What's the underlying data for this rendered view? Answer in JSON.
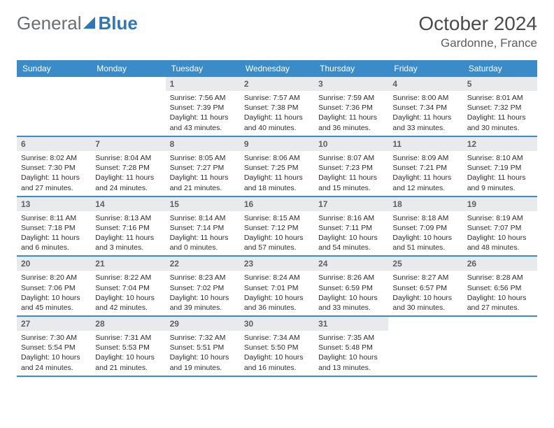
{
  "brand": {
    "part1": "General",
    "part2": "Blue"
  },
  "title": {
    "month": "October 2024",
    "location": "Gardonne, France"
  },
  "colors": {
    "header_bg": "#3b8bc9",
    "header_text": "#ffffff",
    "daynum_bg": "#e8eaec",
    "daynum_text": "#5e6064",
    "rule": "#3b8bc9",
    "logo_gray": "#6b6e71",
    "logo_blue": "#2f77b6"
  },
  "weekdays": [
    "Sunday",
    "Monday",
    "Tuesday",
    "Wednesday",
    "Thursday",
    "Friday",
    "Saturday"
  ],
  "days": [
    {
      "n": "",
      "empty": true
    },
    {
      "n": "",
      "empty": true
    },
    {
      "n": "1",
      "sr": "7:56 AM",
      "ss": "7:39 PM",
      "dl": "11 hours and 43 minutes."
    },
    {
      "n": "2",
      "sr": "7:57 AM",
      "ss": "7:38 PM",
      "dl": "11 hours and 40 minutes."
    },
    {
      "n": "3",
      "sr": "7:59 AM",
      "ss": "7:36 PM",
      "dl": "11 hours and 36 minutes."
    },
    {
      "n": "4",
      "sr": "8:00 AM",
      "ss": "7:34 PM",
      "dl": "11 hours and 33 minutes."
    },
    {
      "n": "5",
      "sr": "8:01 AM",
      "ss": "7:32 PM",
      "dl": "11 hours and 30 minutes."
    },
    {
      "n": "6",
      "sr": "8:02 AM",
      "ss": "7:30 PM",
      "dl": "11 hours and 27 minutes."
    },
    {
      "n": "7",
      "sr": "8:04 AM",
      "ss": "7:28 PM",
      "dl": "11 hours and 24 minutes."
    },
    {
      "n": "8",
      "sr": "8:05 AM",
      "ss": "7:27 PM",
      "dl": "11 hours and 21 minutes."
    },
    {
      "n": "9",
      "sr": "8:06 AM",
      "ss": "7:25 PM",
      "dl": "11 hours and 18 minutes."
    },
    {
      "n": "10",
      "sr": "8:07 AM",
      "ss": "7:23 PM",
      "dl": "11 hours and 15 minutes."
    },
    {
      "n": "11",
      "sr": "8:09 AM",
      "ss": "7:21 PM",
      "dl": "11 hours and 12 minutes."
    },
    {
      "n": "12",
      "sr": "8:10 AM",
      "ss": "7:19 PM",
      "dl": "11 hours and 9 minutes."
    },
    {
      "n": "13",
      "sr": "8:11 AM",
      "ss": "7:18 PM",
      "dl": "11 hours and 6 minutes."
    },
    {
      "n": "14",
      "sr": "8:13 AM",
      "ss": "7:16 PM",
      "dl": "11 hours and 3 minutes."
    },
    {
      "n": "15",
      "sr": "8:14 AM",
      "ss": "7:14 PM",
      "dl": "11 hours and 0 minutes."
    },
    {
      "n": "16",
      "sr": "8:15 AM",
      "ss": "7:12 PM",
      "dl": "10 hours and 57 minutes."
    },
    {
      "n": "17",
      "sr": "8:16 AM",
      "ss": "7:11 PM",
      "dl": "10 hours and 54 minutes."
    },
    {
      "n": "18",
      "sr": "8:18 AM",
      "ss": "7:09 PM",
      "dl": "10 hours and 51 minutes."
    },
    {
      "n": "19",
      "sr": "8:19 AM",
      "ss": "7:07 PM",
      "dl": "10 hours and 48 minutes."
    },
    {
      "n": "20",
      "sr": "8:20 AM",
      "ss": "7:06 PM",
      "dl": "10 hours and 45 minutes."
    },
    {
      "n": "21",
      "sr": "8:22 AM",
      "ss": "7:04 PM",
      "dl": "10 hours and 42 minutes."
    },
    {
      "n": "22",
      "sr": "8:23 AM",
      "ss": "7:02 PM",
      "dl": "10 hours and 39 minutes."
    },
    {
      "n": "23",
      "sr": "8:24 AM",
      "ss": "7:01 PM",
      "dl": "10 hours and 36 minutes."
    },
    {
      "n": "24",
      "sr": "8:26 AM",
      "ss": "6:59 PM",
      "dl": "10 hours and 33 minutes."
    },
    {
      "n": "25",
      "sr": "8:27 AM",
      "ss": "6:57 PM",
      "dl": "10 hours and 30 minutes."
    },
    {
      "n": "26",
      "sr": "8:28 AM",
      "ss": "6:56 PM",
      "dl": "10 hours and 27 minutes."
    },
    {
      "n": "27",
      "sr": "7:30 AM",
      "ss": "5:54 PM",
      "dl": "10 hours and 24 minutes."
    },
    {
      "n": "28",
      "sr": "7:31 AM",
      "ss": "5:53 PM",
      "dl": "10 hours and 21 minutes."
    },
    {
      "n": "29",
      "sr": "7:32 AM",
      "ss": "5:51 PM",
      "dl": "10 hours and 19 minutes."
    },
    {
      "n": "30",
      "sr": "7:34 AM",
      "ss": "5:50 PM",
      "dl": "10 hours and 16 minutes."
    },
    {
      "n": "31",
      "sr": "7:35 AM",
      "ss": "5:48 PM",
      "dl": "10 hours and 13 minutes."
    },
    {
      "n": "",
      "empty": true
    },
    {
      "n": "",
      "empty": true
    }
  ],
  "labels": {
    "sunrise": "Sunrise: ",
    "sunset": "Sunset: ",
    "daylight": "Daylight: "
  }
}
